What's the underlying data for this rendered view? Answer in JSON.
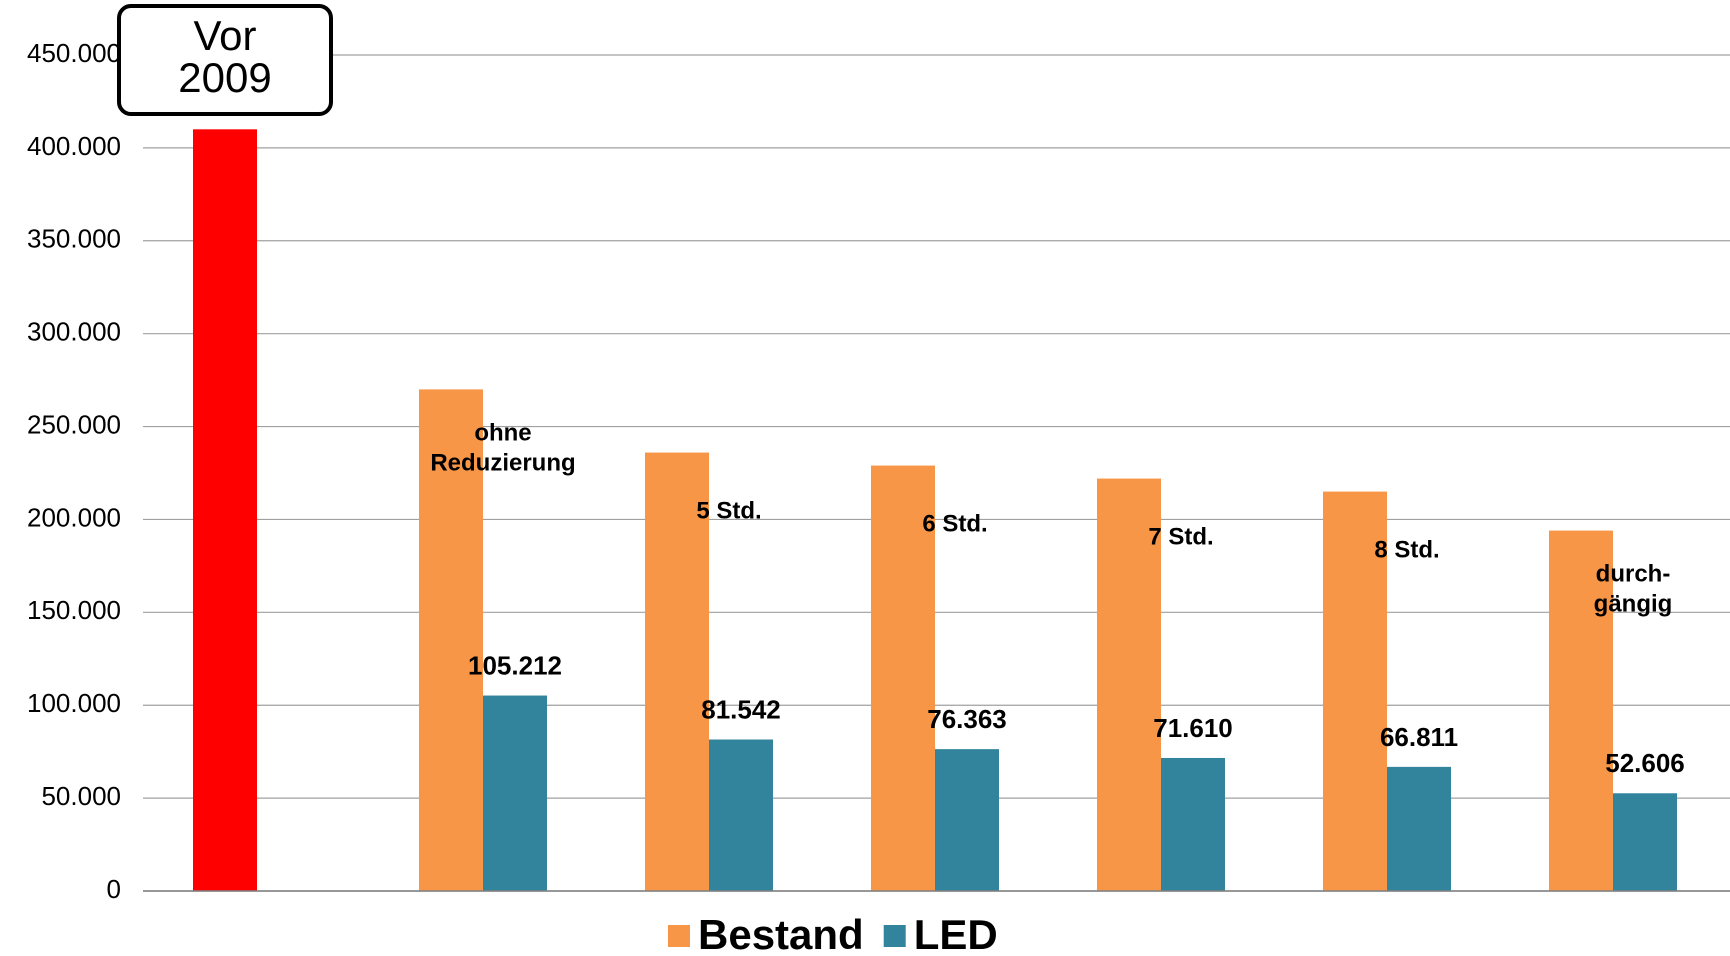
{
  "chart_data": {
    "type": "bar",
    "categories": [
      "Vor\n2009",
      "ohne\nReduzierung",
      "5 Std.",
      "6 Std.",
      "7 Std.",
      "8 Std.",
      "durch-\ngängig"
    ],
    "series": [
      {
        "name": "Bestand",
        "color": "#f79646",
        "values": [
          410000,
          270000,
          236000,
          229000,
          222000,
          215000,
          194000
        ]
      },
      {
        "name": "LED",
        "color": "#31849b",
        "values": [
          null,
          105212,
          81542,
          76363,
          71610,
          66811,
          52606
        ],
        "value_labels": [
          null,
          "105.212",
          "81.542",
          "76.363",
          "71.610",
          "66.811",
          "52.606"
        ]
      }
    ],
    "highlight": {
      "index": 0,
      "color": "#ff0000"
    },
    "ylim": [
      0,
      450000
    ],
    "yticks": [
      0,
      {
        "value": 50000,
        "label": "50.000"
      },
      {
        "value": 100000,
        "label": "100.000"
      },
      {
        "value": 150000,
        "label": "150.000"
      },
      {
        "value": 200000,
        "label": "200.000"
      },
      {
        "value": 250000,
        "label": "250.000"
      },
      {
        "value": 300000,
        "label": "300.000"
      },
      {
        "value": 350000,
        "label": "350.000"
      },
      {
        "value": 400000,
        "label": "400.000"
      },
      {
        "value": 450000,
        "label": "450.000"
      }
    ],
    "grid": true,
    "legend": "bottom"
  }
}
